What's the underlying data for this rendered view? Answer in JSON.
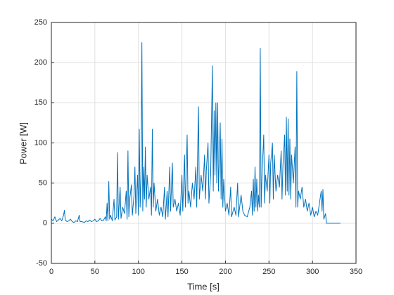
{
  "chart_data": {
    "type": "line",
    "xlabel": "Time [s]",
    "ylabel": "Power [W]",
    "xlim": [
      0,
      350
    ],
    "xticks": [
      0,
      50,
      100,
      150,
      200,
      250,
      300,
      350
    ],
    "ylim": [
      -50,
      250
    ],
    "yticks": [
      -50,
      0,
      50,
      100,
      150,
      200,
      250
    ],
    "grid": true,
    "series": [
      {
        "color": "#0072bd",
        "x": [
          0,
          2,
          4,
          6,
          8,
          10,
          12,
          14,
          15,
          16,
          18,
          20,
          22,
          24,
          26,
          28,
          30,
          32,
          33,
          35,
          38,
          40,
          42,
          44,
          46,
          48,
          50,
          52,
          54,
          56,
          58,
          60,
          62,
          63,
          64,
          65,
          66,
          67,
          68,
          70,
          72,
          73,
          75,
          76,
          77,
          79,
          80,
          82,
          84,
          86,
          87,
          88,
          89,
          90,
          92,
          93,
          95,
          96,
          97,
          99,
          100,
          101,
          102,
          103,
          104,
          105,
          106,
          107,
          108,
          109,
          110,
          112,
          114,
          115,
          116,
          117,
          118,
          120,
          122,
          124,
          126,
          128,
          130,
          131,
          133,
          134,
          136,
          137,
          139,
          140,
          142,
          144,
          146,
          148,
          150,
          151,
          153,
          154,
          156,
          157,
          158,
          160,
          162,
          164,
          166,
          167,
          169,
          170,
          172,
          174,
          176,
          177,
          178,
          180,
          181,
          183,
          185,
          186,
          187,
          188,
          189,
          190,
          191,
          192,
          194,
          195,
          196,
          197,
          198,
          200,
          202,
          204,
          206,
          207,
          210,
          212,
          214,
          215,
          218,
          220,
          222,
          225,
          228,
          230,
          231,
          232,
          233,
          234,
          235,
          236,
          237,
          238,
          239,
          240,
          241,
          242,
          244,
          245,
          246,
          248,
          250,
          251,
          252,
          254,
          255,
          256,
          258,
          260,
          262,
          264,
          265,
          266,
          268,
          269,
          270,
          271,
          272,
          273,
          274,
          275,
          276,
          278,
          280,
          281,
          282,
          283,
          284,
          286,
          288,
          290,
          292,
          294,
          296,
          298,
          300,
          302,
          304,
          306,
          308,
          310,
          311,
          312,
          313,
          315,
          316,
          320,
          325,
          332
        ],
        "values": [
          5,
          3,
          8,
          2,
          4,
          6,
          3,
          10,
          16,
          4,
          2,
          3,
          5,
          2,
          1,
          3,
          2,
          10,
          2,
          2,
          1,
          3,
          2,
          4,
          2,
          3,
          5,
          2,
          3,
          6,
          3,
          4,
          8,
          3,
          25,
          3,
          52,
          5,
          10,
          3,
          30,
          4,
          8,
          88,
          5,
          45,
          6,
          20,
          12,
          40,
          5,
          90,
          8,
          30,
          48,
          10,
          35,
          70,
          12,
          60,
          10,
          117,
          20,
          60,
          225,
          15,
          70,
          30,
          95,
          20,
          60,
          30,
          45,
          10,
          117,
          20,
          50,
          15,
          30,
          10,
          20,
          8,
          45,
          5,
          40,
          8,
          70,
          15,
          75,
          20,
          30,
          15,
          25,
          10,
          60,
          15,
          85,
          20,
          110,
          25,
          40,
          20,
          50,
          30,
          70,
          20,
          145,
          30,
          60,
          40,
          85,
          30,
          65,
          100,
          25,
          60,
          196,
          40,
          140,
          60,
          150,
          50,
          150,
          40,
          125,
          30,
          105,
          20,
          55,
          15,
          25,
          10,
          45,
          8,
          20,
          10,
          50,
          8,
          35,
          15,
          10,
          8,
          20,
          40,
          10,
          55,
          15,
          70,
          20,
          55,
          15,
          35,
          20,
          218,
          20,
          60,
          110,
          25,
          60,
          40,
          85,
          25,
          75,
          100,
          30,
          85,
          40,
          60,
          45,
          90,
          30,
          70,
          110,
          35,
          132,
          40,
          130,
          35,
          105,
          30,
          85,
          50,
          95,
          20,
          189,
          20,
          40,
          30,
          45,
          20,
          30,
          15,
          25,
          10,
          20,
          8,
          15,
          10,
          25,
          40,
          15,
          42,
          5,
          12,
          0,
          0,
          0,
          0
        ]
      }
    ]
  }
}
